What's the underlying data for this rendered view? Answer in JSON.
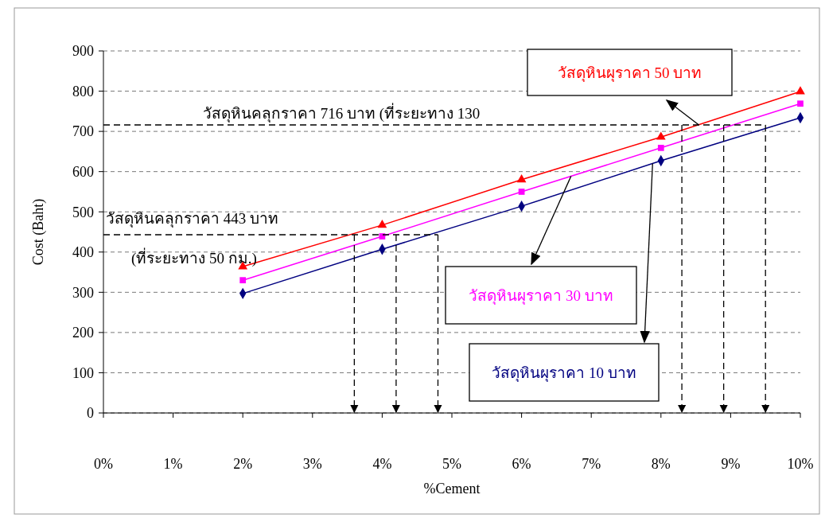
{
  "chart_data": {
    "type": "line",
    "xlabel": "%Cement",
    "ylabel": "Cost (Baht)",
    "x": [
      2,
      4,
      6,
      8,
      10
    ],
    "series": [
      {
        "name": "วัสดุหินผุราคา 50 บาท",
        "color": "#ff0000",
        "marker": "triangle",
        "values": [
          364,
          467,
          580,
          686,
          799
        ]
      },
      {
        "name": "วัสดุหินผุราคา 30 บาท",
        "color": "#ff00ff",
        "marker": "square",
        "values": [
          330,
          439,
          550,
          659,
          769
        ]
      },
      {
        "name": "วัสดุหินผุราคา 10 บาท",
        "color": "#000080",
        "marker": "diamond",
        "values": [
          297,
          407,
          514,
          627,
          734
        ]
      }
    ],
    "xlim": [
      0,
      10
    ],
    "xticks": [
      {
        "value": 0,
        "label": "0%"
      },
      {
        "value": 1,
        "label": "1%"
      },
      {
        "value": 2,
        "label": "2%"
      },
      {
        "value": 3,
        "label": "3%"
      },
      {
        "value": 4,
        "label": "4%"
      },
      {
        "value": 5,
        "label": "5%"
      },
      {
        "value": 6,
        "label": "6%"
      },
      {
        "value": 7,
        "label": "7%"
      },
      {
        "value": 8,
        "label": "8%"
      },
      {
        "value": 9,
        "label": "9%"
      },
      {
        "value": 10,
        "label": "10%"
      }
    ],
    "ylim": [
      0,
      900
    ],
    "yticks": [
      0,
      100,
      200,
      300,
      400,
      500,
      600,
      700,
      800,
      900
    ],
    "grid": "y",
    "ref_lines": [
      {
        "axis": "y",
        "value": 716,
        "label": "วัสดุหินคลุกราคา 716 บาท (ที่ระยะทาง 130",
        "color": "#000000",
        "line_style": "dashed"
      },
      {
        "axis": "x",
        "value": 8.3,
        "color": "#000000",
        "line_style": "dashed"
      },
      {
        "axis": "x",
        "value": 8.9,
        "color": "#000000",
        "line_style": "dashed"
      },
      {
        "axis": "x",
        "value": 9.5,
        "color": "#000000",
        "line_style": "dashed"
      },
      {
        "axis": "y",
        "value": 443,
        "label": "วัสดุหินคลุกราคา 443 บาท\n(ที่ระยะทาง 50 กม.)",
        "color": "#000000",
        "line_style": "dashed"
      },
      {
        "axis": "x",
        "value": 3.6,
        "color": "#000000",
        "line_style": "dashed"
      },
      {
        "axis": "x",
        "value": 4.2,
        "color": "#000000",
        "line_style": "dashed"
      },
      {
        "axis": "x",
        "value": 4.8,
        "color": "#000000",
        "line_style": "dashed"
      }
    ]
  }
}
